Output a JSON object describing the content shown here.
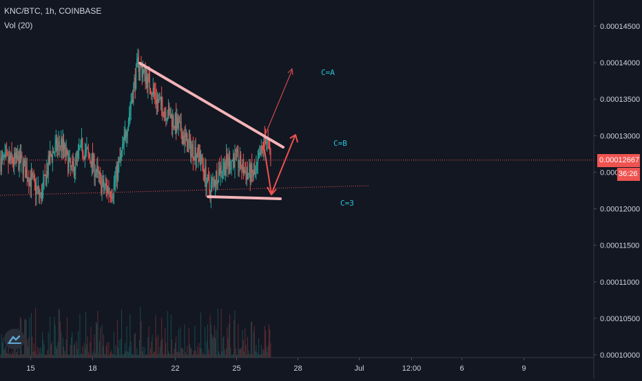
{
  "header": {
    "symbol_line": "KNC/BTC, 1h, COINBASE",
    "volume_line": "Vol (20)"
  },
  "colors": {
    "bg": "#131722",
    "up": "#26a69a",
    "down": "#ef5350",
    "axis_text": "#d1d4dc",
    "trendline": "#f4b4b8",
    "annotation": "#26c6da",
    "price_tag": "#ef5350"
  },
  "price_tag": {
    "value": "0.00012667",
    "countdown": "36:26"
  },
  "annotations": [
    {
      "label": "C=A"
    },
    {
      "label": "C=B"
    },
    {
      "label": "C=3"
    }
  ],
  "chart_data": {
    "type": "candlestick",
    "title": "",
    "y_axis_ticks": [
      "0.00014500",
      "0.00014000",
      "0.00013500",
      "0.00013000",
      "0.00012500",
      "0.00012000",
      "0.00011500",
      "0.00011000",
      "0.00010500",
      "0.00010000"
    ],
    "x_axis_ticks": [
      "15",
      "18",
      "22",
      "25",
      "28",
      "Jul",
      "12:00",
      "6",
      "9"
    ],
    "ylim": [
      9.97e-05,
      0.0001493
    ],
    "last_price": 0.00012667,
    "close_path": [
      {
        "x": "14 12:00",
        "y": 0.0001265
      },
      {
        "x": "15 00:00",
        "y": 0.000124
      },
      {
        "x": "15 12:00",
        "y": 0.0001215
      },
      {
        "x": "16 00:00",
        "y": 0.0001275
      },
      {
        "x": "16 12:00",
        "y": 0.000129
      },
      {
        "x": "17 00:00",
        "y": 0.000125
      },
      {
        "x": "17 12:00",
        "y": 0.0001285
      },
      {
        "x": "18 00:00",
        "y": 0.0001265
      },
      {
        "x": "18 12:00",
        "y": 0.000123
      },
      {
        "x": "19 00:00",
        "y": 0.0001225
      },
      {
        "x": "19 12:00",
        "y": 0.000128
      },
      {
        "x": "20 00:00",
        "y": 0.000136
      },
      {
        "x": "20 06:00",
        "y": 0.00014
      },
      {
        "x": "20 18:00",
        "y": 0.0001375
      },
      {
        "x": "21 06:00",
        "y": 0.0001345
      },
      {
        "x": "21 18:00",
        "y": 0.000133
      },
      {
        "x": "22 06:00",
        "y": 0.000131
      },
      {
        "x": "22 18:00",
        "y": 0.0001285
      },
      {
        "x": "23 06:00",
        "y": 0.0001275
      },
      {
        "x": "23 18:00",
        "y": 0.0001225
      },
      {
        "x": "24 06:00",
        "y": 0.0001255
      },
      {
        "x": "24 18:00",
        "y": 0.0001265
      },
      {
        "x": "25 00:00",
        "y": 0.000127
      },
      {
        "x": "25 12:00",
        "y": 0.000125
      },
      {
        "x": "26 00:00",
        "y": 0.0001245
      },
      {
        "x": "26 12:00",
        "y": 0.00013
      },
      {
        "x": "26 18:00",
        "y": 0.0001267
      }
    ]
  }
}
